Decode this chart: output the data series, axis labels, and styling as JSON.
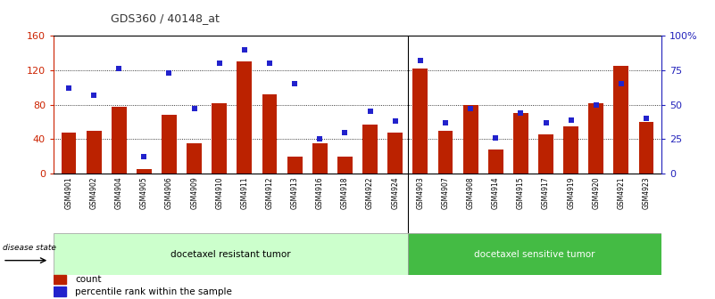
{
  "title": "GDS360 / 40148_at",
  "samples": [
    "GSM4901",
    "GSM4902",
    "GSM4904",
    "GSM4905",
    "GSM4906",
    "GSM4909",
    "GSM4910",
    "GSM4911",
    "GSM4912",
    "GSM4913",
    "GSM4916",
    "GSM4918",
    "GSM4922",
    "GSM4924",
    "GSM4903",
    "GSM4907",
    "GSM4908",
    "GSM4914",
    "GSM4915",
    "GSM4917",
    "GSM4919",
    "GSM4920",
    "GSM4921",
    "GSM4923"
  ],
  "counts": [
    47,
    50,
    78,
    5,
    68,
    35,
    82,
    130,
    92,
    20,
    35,
    20,
    57,
    47,
    122,
    50,
    80,
    28,
    70,
    45,
    55,
    82,
    125,
    60
  ],
  "percentiles": [
    62,
    57,
    76,
    12,
    73,
    47,
    80,
    90,
    80,
    65,
    25,
    30,
    45,
    38,
    82,
    37,
    47,
    26,
    44,
    37,
    39,
    50,
    65,
    40
  ],
  "group1_count": 14,
  "group2_count": 10,
  "group1_label": "docetaxel resistant tumor",
  "group2_label": "docetaxel sensitive tumor",
  "bar_color": "#bb2200",
  "dot_color": "#2222cc",
  "bg_color": "#ffffff",
  "ylim_left": [
    0,
    160
  ],
  "ylim_right": [
    0,
    100
  ],
  "yticks_left": [
    0,
    40,
    80,
    120,
    160
  ],
  "ytick_labels_left": [
    "0",
    "40",
    "80",
    "120",
    "160"
  ],
  "yticks_right": [
    0,
    25,
    50,
    75,
    100
  ],
  "ytick_labels_right": [
    "0",
    "25",
    "50",
    "75",
    "100%"
  ],
  "left_axis_color": "#cc2200",
  "right_axis_color": "#2222bb",
  "group1_bg": "#ccffcc",
  "group2_bg": "#44bb44",
  "disease_state_label": "disease state",
  "legend_count_label": "count",
  "legend_pct_label": "percentile rank within the sample"
}
